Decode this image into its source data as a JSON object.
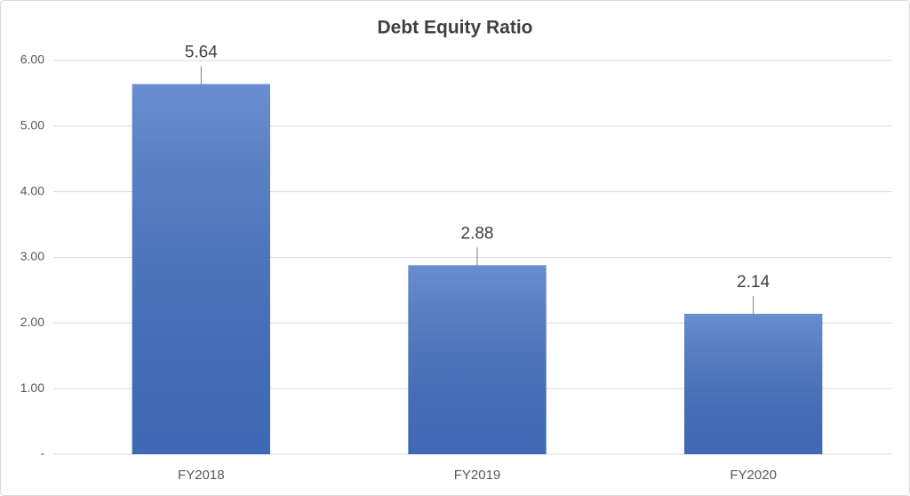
{
  "chart_data": {
    "type": "bar",
    "title": "Debt Equity Ratio",
    "categories": [
      "FY2018",
      "FY2019",
      "FY2020"
    ],
    "values": [
      5.64,
      2.88,
      2.14
    ],
    "color": "#4472c4",
    "ylim": [
      0,
      6
    ],
    "yticks": [
      {
        "value": 0,
        "label": "-"
      },
      {
        "value": 1,
        "label": "1.00"
      },
      {
        "value": 2,
        "label": "2.00"
      },
      {
        "value": 3,
        "label": "3.00"
      },
      {
        "value": 4,
        "label": "4.00"
      },
      {
        "value": 5,
        "label": "5.00"
      },
      {
        "value": 6,
        "label": "6.00"
      }
    ],
    "grid": true
  }
}
